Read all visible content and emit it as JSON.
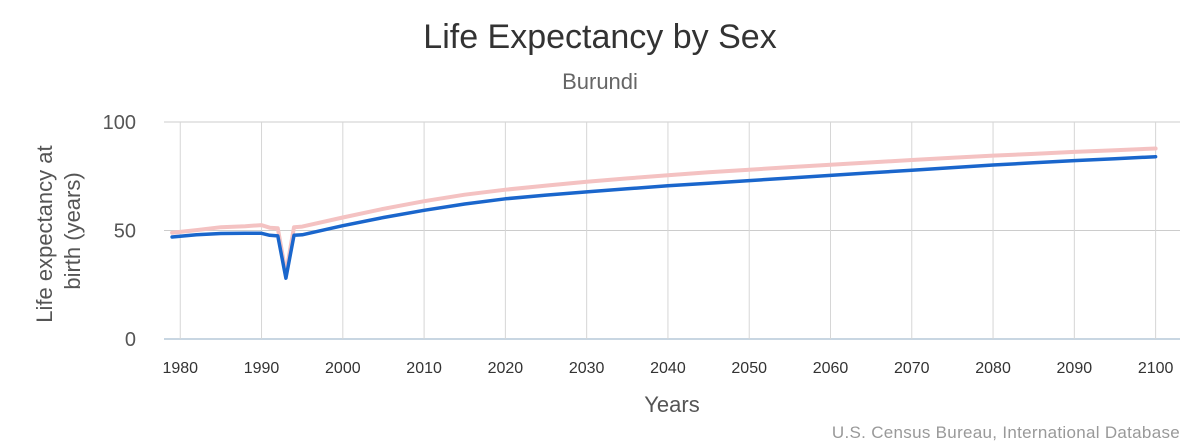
{
  "chart_data": {
    "type": "line",
    "title": "Life Expectancy by Sex",
    "subtitle": "Burundi",
    "xlabel": "Years",
    "ylabel_lines": [
      "Life expectancy at",
      "birth (years)"
    ],
    "credit": "U.S. Census Bureau, International Database",
    "xlim": [
      1978,
      2103
    ],
    "ylim": [
      0,
      100
    ],
    "x_ticks": [
      "1980",
      "1990",
      "2000",
      "2010",
      "2020",
      "2030",
      "2040",
      "2050",
      "2060",
      "2070",
      "2080",
      "2090",
      "2100"
    ],
    "y_ticks": [
      "0",
      "50",
      "100"
    ],
    "grid": true,
    "legend": "none",
    "series": [
      {
        "color": "#f4c2c2",
        "width": 4,
        "points": [
          [
            1979,
            49.0
          ],
          [
            1982,
            50.2
          ],
          [
            1985,
            51.5
          ],
          [
            1988,
            52.0
          ],
          [
            1990,
            52.5
          ],
          [
            1991,
            51.3
          ],
          [
            1992,
            51.0
          ],
          [
            1993,
            30.0
          ],
          [
            1994,
            51.5
          ],
          [
            1995,
            51.8
          ],
          [
            2000,
            56.0
          ],
          [
            2005,
            60.0
          ],
          [
            2010,
            63.5
          ],
          [
            2015,
            66.5
          ],
          [
            2020,
            68.8
          ],
          [
            2025,
            70.7
          ],
          [
            2030,
            72.5
          ],
          [
            2035,
            74.0
          ],
          [
            2040,
            75.5
          ],
          [
            2045,
            76.8
          ],
          [
            2050,
            78.0
          ],
          [
            2055,
            79.2
          ],
          [
            2060,
            80.3
          ],
          [
            2065,
            81.4
          ],
          [
            2070,
            82.5
          ],
          [
            2075,
            83.5
          ],
          [
            2080,
            84.5
          ],
          [
            2085,
            85.3
          ],
          [
            2090,
            86.2
          ],
          [
            2095,
            87.0
          ],
          [
            2100,
            87.8
          ]
        ]
      },
      {
        "color": "#1a66cc",
        "width": 3.5,
        "points": [
          [
            1979,
            47.0
          ],
          [
            1982,
            48.0
          ],
          [
            1985,
            48.6
          ],
          [
            1988,
            48.7
          ],
          [
            1990,
            48.7
          ],
          [
            1991,
            47.8
          ],
          [
            1992,
            47.5
          ],
          [
            1993,
            28.0
          ],
          [
            1994,
            47.8
          ],
          [
            1995,
            48.0
          ],
          [
            2000,
            52.2
          ],
          [
            2005,
            56.0
          ],
          [
            2010,
            59.3
          ],
          [
            2015,
            62.2
          ],
          [
            2020,
            64.6
          ],
          [
            2025,
            66.3
          ],
          [
            2030,
            67.8
          ],
          [
            2035,
            69.2
          ],
          [
            2040,
            70.6
          ],
          [
            2045,
            71.8
          ],
          [
            2050,
            73.0
          ],
          [
            2055,
            74.2
          ],
          [
            2060,
            75.4
          ],
          [
            2065,
            76.6
          ],
          [
            2070,
            77.8
          ],
          [
            2075,
            79.0
          ],
          [
            2080,
            80.2
          ],
          [
            2085,
            81.2
          ],
          [
            2090,
            82.2
          ],
          [
            2095,
            83.1
          ],
          [
            2100,
            84.0
          ]
        ]
      }
    ]
  }
}
